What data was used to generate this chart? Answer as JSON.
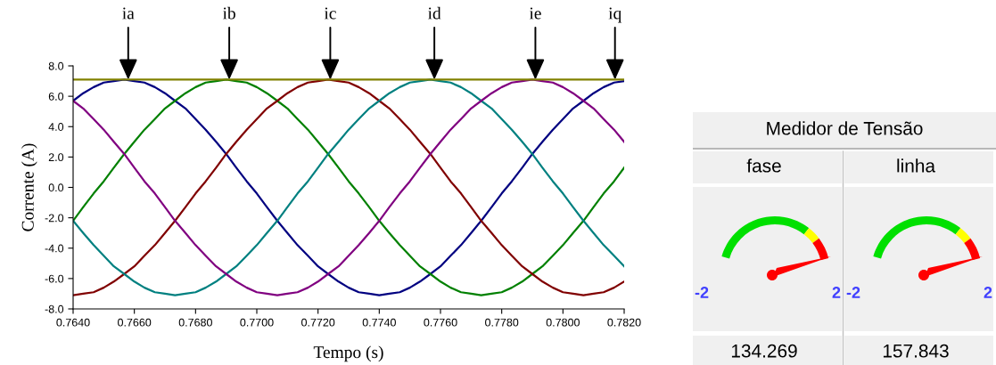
{
  "chart_data": [
    {
      "type": "line",
      "xlabel": "Tempo (s)",
      "ylabel": "Corrente (A)",
      "x": [
        0.764,
        0.76433,
        0.76467,
        0.765,
        0.76533,
        0.76567,
        0.766,
        0.76633,
        0.76667,
        0.767,
        0.76733,
        0.76767,
        0.768,
        0.76833,
        0.76867,
        0.769,
        0.76933,
        0.76967,
        0.77,
        0.77033,
        0.77067,
        0.771,
        0.77133,
        0.77167,
        0.772,
        0.77233,
        0.77267,
        0.773,
        0.77333,
        0.77367,
        0.774,
        0.77433,
        0.77467,
        0.775,
        0.77533,
        0.77567,
        0.776,
        0.77633,
        0.77667,
        0.777,
        0.77733,
        0.77767,
        0.778,
        0.77833,
        0.77867,
        0.779,
        0.77933,
        0.77967,
        0.78,
        0.78033,
        0.78067,
        0.781,
        0.78133,
        0.78167,
        0.782
      ],
      "series": [
        {
          "color": "#000080",
          "values": [
            5.7,
            6.2,
            6.6,
            6.9,
            7.0,
            7.1,
            7.0,
            6.9,
            6.6,
            6.2,
            5.7,
            5.2,
            4.5,
            3.8,
            3.0,
            2.2,
            1.3,
            0.4,
            -0.4,
            -1.3,
            -2.2,
            -3.0,
            -3.8,
            -4.5,
            -5.2,
            -5.7,
            -6.2,
            -6.6,
            -6.9,
            -7.0,
            -7.1,
            -7.0,
            -6.9,
            -6.6,
            -6.2,
            -5.7,
            -5.2,
            -4.5,
            -3.8,
            -3.0,
            -2.2,
            -1.3,
            -0.4,
            0.4,
            1.3,
            2.2,
            3.0,
            3.8,
            4.5,
            5.2,
            5.7,
            6.2,
            6.6,
            6.9,
            7.0
          ]
        },
        {
          "color": "#008000",
          "values": [
            -2.2,
            -1.3,
            -0.4,
            0.4,
            1.3,
            2.2,
            3.0,
            3.8,
            4.5,
            5.2,
            5.7,
            6.2,
            6.6,
            6.9,
            7.0,
            7.1,
            7.0,
            6.9,
            6.6,
            6.2,
            5.7,
            5.2,
            4.5,
            3.8,
            3.0,
            2.2,
            1.3,
            0.4,
            -0.4,
            -1.3,
            -2.2,
            -3.0,
            -3.8,
            -4.5,
            -5.2,
            -5.7,
            -6.2,
            -6.6,
            -6.9,
            -7.0,
            -7.1,
            -7.0,
            -6.9,
            -6.6,
            -6.2,
            -5.7,
            -5.2,
            -4.5,
            -3.8,
            -3.0,
            -2.2,
            -1.3,
            -0.4,
            0.4,
            1.3
          ]
        },
        {
          "color": "#800000",
          "values": [
            -7.1,
            -7.0,
            -6.9,
            -6.6,
            -6.2,
            -5.7,
            -5.2,
            -4.5,
            -3.8,
            -3.0,
            -2.2,
            -1.3,
            -0.4,
            0.4,
            1.3,
            2.2,
            3.0,
            3.8,
            4.5,
            5.2,
            5.7,
            6.2,
            6.6,
            6.9,
            7.0,
            7.1,
            7.0,
            6.9,
            6.6,
            6.2,
            5.7,
            5.2,
            4.5,
            3.8,
            3.0,
            2.2,
            1.3,
            0.4,
            -0.4,
            -1.3,
            -2.2,
            -3.0,
            -3.8,
            -4.5,
            -5.2,
            -5.7,
            -6.2,
            -6.6,
            -6.9,
            -7.0,
            -7.1,
            -7.0,
            -6.9,
            -6.6,
            -6.2
          ]
        },
        {
          "color": "#008080",
          "values": [
            -2.2,
            -3.0,
            -3.8,
            -4.5,
            -5.2,
            -5.7,
            -6.2,
            -6.6,
            -6.9,
            -7.0,
            -7.1,
            -7.0,
            -6.9,
            -6.6,
            -6.2,
            -5.7,
            -5.2,
            -4.5,
            -3.8,
            -3.0,
            -2.2,
            -1.3,
            -0.4,
            0.4,
            1.3,
            2.2,
            3.0,
            3.8,
            4.5,
            5.2,
            5.7,
            6.2,
            6.6,
            6.9,
            7.0,
            7.1,
            7.0,
            6.9,
            6.6,
            6.2,
            5.7,
            5.2,
            4.5,
            3.8,
            3.0,
            2.2,
            1.3,
            0.4,
            -0.4,
            -1.3,
            -2.2,
            -3.0,
            -3.8,
            -4.5,
            -5.2
          ]
        },
        {
          "color": "#800080",
          "values": [
            5.7,
            5.2,
            4.5,
            3.8,
            3.0,
            2.2,
            1.3,
            0.4,
            -0.4,
            -1.3,
            -2.2,
            -3.0,
            -3.8,
            -4.5,
            -5.2,
            -5.7,
            -6.2,
            -6.6,
            -6.9,
            -7.0,
            -7.1,
            -7.0,
            -6.9,
            -6.6,
            -6.2,
            -5.7,
            -5.2,
            -4.5,
            -3.8,
            -3.0,
            -2.2,
            -1.3,
            -0.4,
            0.4,
            1.3,
            2.2,
            3.0,
            3.8,
            4.5,
            5.2,
            5.7,
            6.2,
            6.6,
            6.9,
            7.0,
            7.1,
            7.0,
            6.9,
            6.6,
            6.2,
            5.7,
            5.2,
            4.5,
            3.8,
            3.0
          ]
        },
        {
          "color": "#808000",
          "x": [
            0.764,
            0.782
          ],
          "values": [
            7.1,
            7.1
          ]
        }
      ],
      "annotations": [
        {
          "text": "ia",
          "x": 0.7658,
          "y": 7.1
        },
        {
          "text": "ib",
          "x": 0.7691,
          "y": 7.1
        },
        {
          "text": "ic",
          "x": 0.7724,
          "y": 7.1
        },
        {
          "text": "id",
          "x": 0.7758,
          "y": 7.1
        },
        {
          "text": "ie",
          "x": 0.7791,
          "y": 7.1
        },
        {
          "text": "iq",
          "x": 0.7817,
          "y": 7.1
        }
      ],
      "xlim": [
        0.764,
        0.782
      ],
      "xticks": [
        {
          "value": 0.764,
          "label": "0.7640"
        },
        {
          "value": 0.766,
          "label": "0.7660"
        },
        {
          "value": 0.768,
          "label": "0.7680"
        },
        {
          "value": 0.77,
          "label": "0.7700"
        },
        {
          "value": 0.772,
          "label": "0.7720"
        },
        {
          "value": 0.774,
          "label": "0.7740"
        },
        {
          "value": 0.776,
          "label": "0.7760"
        },
        {
          "value": 0.778,
          "label": "0.7780"
        },
        {
          "value": 0.78,
          "label": "0.7800"
        },
        {
          "value": 0.782,
          "label": "0.7820"
        }
      ],
      "ylim": [
        -8,
        8
      ],
      "yticks": [
        {
          "value": -8,
          "label": "-8.0"
        },
        {
          "value": -6,
          "label": "-6.0"
        },
        {
          "value": -4,
          "label": "-4.0"
        },
        {
          "value": -2,
          "label": "-2.0"
        },
        {
          "value": 0,
          "label": "0.0"
        },
        {
          "value": 2,
          "label": "2.0"
        },
        {
          "value": 4,
          "label": "4.0"
        },
        {
          "value": 6,
          "label": "6.0"
        },
        {
          "value": 8,
          "label": "8.0"
        }
      ],
      "grid": false,
      "legend": false,
      "marker": "none",
      "line_style": "solid"
    },
    {
      "type": "other",
      "title": "Medidor de Tensão",
      "categories": [
        "fase",
        "linha"
      ],
      "values": [
        134.269,
        157.843
      ],
      "data_labels": true,
      "annotations": [
        "-2",
        "2",
        "-2",
        "2"
      ]
    }
  ]
}
